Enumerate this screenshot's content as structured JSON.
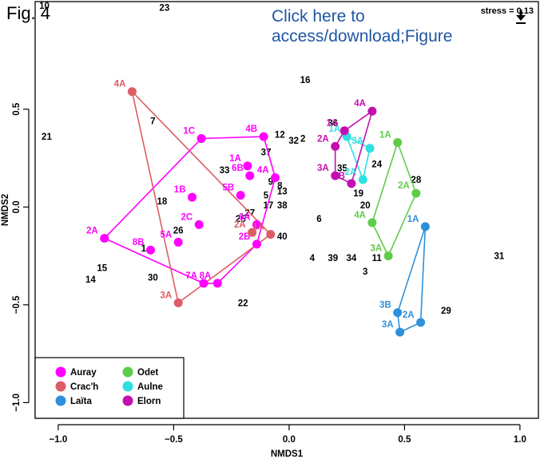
{
  "header": {
    "fig_label": "Fig. 4",
    "link_text_line1": "Click here to",
    "link_text_line2": "access/download;Figure",
    "download_icon": "download-icon"
  },
  "chart_data": {
    "type": "scatter",
    "stress_label": "stress = 0.13",
    "xlabel": "NMDS1",
    "ylabel": "NMDS2",
    "xlim": [
      -1.1,
      1.08
    ],
    "ylim": [
      -1.08,
      1.05
    ],
    "xticks": [
      -1.0,
      -0.5,
      0.0,
      0.5,
      1.0
    ],
    "xtick_labels": [
      "−1.0",
      "−0.5",
      "0.0",
      "0.5",
      "1.0"
    ],
    "yticks": [
      -1.0,
      -0.5,
      0.0,
      0.5
    ],
    "ytick_labels": [
      "−1.0",
      "−0.5",
      "0.0",
      "0.5"
    ],
    "grid": false,
    "legend_position": "bottom-left",
    "series": [
      {
        "name": "Auray",
        "color": "#ff00ff",
        "points": [
          {
            "label": "1A",
            "x": -0.18,
            "y": 0.21
          },
          {
            "label": "1B",
            "x": -0.42,
            "y": 0.05
          },
          {
            "label": "1C",
            "x": -0.38,
            "y": 0.35
          },
          {
            "label": "2A",
            "x": -0.8,
            "y": -0.16
          },
          {
            "label": "2B",
            "x": -0.14,
            "y": -0.19
          },
          {
            "label": "2C",
            "x": -0.39,
            "y": -0.09
          },
          {
            "label": "4A",
            "x": -0.06,
            "y": 0.15
          },
          {
            "label": "4B",
            "x": -0.11,
            "y": 0.36
          },
          {
            "label": "5A",
            "x": -0.48,
            "y": -0.18
          },
          {
            "label": "5B",
            "x": -0.21,
            "y": 0.06
          },
          {
            "label": "6A",
            "x": -0.14,
            "y": -0.09
          },
          {
            "label": "6B",
            "x": -0.17,
            "y": 0.16
          },
          {
            "label": "7A",
            "x": -0.37,
            "y": -0.39
          },
          {
            "label": "8A",
            "x": -0.31,
            "y": -0.39
          },
          {
            "label": "8B",
            "x": -0.6,
            "y": -0.22
          }
        ],
        "hull": [
          "1C",
          "4B",
          "4A",
          "2B",
          "8A",
          "7A",
          "2A"
        ]
      },
      {
        "name": "Crac'h",
        "color": "#dc5d66",
        "points": [
          {
            "label": "1A",
            "x": -0.08,
            "y": -0.14
          },
          {
            "label": "2A",
            "x": -0.16,
            "y": -0.13
          },
          {
            "label": "3A",
            "x": -0.48,
            "y": -0.49
          },
          {
            "label": "4A",
            "x": -0.68,
            "y": 0.59
          }
        ],
        "hull": [
          "4A",
          "1A",
          "3A"
        ]
      },
      {
        "name": "Laïta",
        "color": "#2e90dc",
        "points": [
          {
            "label": "1A",
            "x": 0.59,
            "y": -0.1
          },
          {
            "label": "2A",
            "x": 0.57,
            "y": -0.59
          },
          {
            "label": "3A",
            "x": 0.48,
            "y": -0.64
          },
          {
            "label": "3B",
            "x": 0.47,
            "y": -0.54
          }
        ],
        "hull": [
          "1A",
          "2A",
          "3A",
          "3B"
        ]
      },
      {
        "name": "Odet",
        "color": "#5fcc49",
        "points": [
          {
            "label": "1A",
            "x": 0.47,
            "y": 0.33
          },
          {
            "label": "2A",
            "x": 0.55,
            "y": 0.07
          },
          {
            "label": "3A",
            "x": 0.43,
            "y": -0.25
          },
          {
            "label": "4A",
            "x": 0.36,
            "y": -0.08
          }
        ],
        "hull": [
          "1A",
          "2A",
          "3A",
          "4A"
        ]
      },
      {
        "name": "Aulne",
        "color": "#2fdfe2",
        "points": [
          {
            "label": "1A",
            "x": 0.25,
            "y": 0.36
          },
          {
            "label": "2A",
            "x": 0.32,
            "y": 0.14
          },
          {
            "label": "3A",
            "x": 0.35,
            "y": 0.3
          }
        ],
        "hull": [
          "1A",
          "3A",
          "2A"
        ]
      },
      {
        "name": "Elorn",
        "color": "#c40fb0",
        "points": [
          {
            "label": "1A",
            "x": 0.24,
            "y": 0.39
          },
          {
            "label": "2A",
            "x": 0.2,
            "y": 0.31
          },
          {
            "label": "3A",
            "x": 0.2,
            "y": 0.16
          },
          {
            "label": "3B",
            "x": 0.27,
            "y": 0.12
          },
          {
            "label": "4A",
            "x": 0.36,
            "y": 0.49
          }
        ],
        "hull": [
          "1A",
          "4A",
          "3B",
          "3A",
          "2A"
        ]
      }
    ],
    "species_labels": [
      {
        "label": "1",
        "x": -0.63,
        "y": -0.21
      },
      {
        "label": "3",
        "x": 0.33,
        "y": -0.33
      },
      {
        "label": "4",
        "x": 0.1,
        "y": -0.26
      },
      {
        "label": "5",
        "x": -0.1,
        "y": 0.06
      },
      {
        "label": "6",
        "x": 0.13,
        "y": -0.06
      },
      {
        "label": "7",
        "x": -0.59,
        "y": 0.44
      },
      {
        "label": "8",
        "x": -0.04,
        "y": 0.11
      },
      {
        "label": "9",
        "x": -0.08,
        "y": 0.13
      },
      {
        "label": "10",
        "x": -1.06,
        "y": 1.03
      },
      {
        "label": "11",
        "x": 0.38,
        "y": -0.26
      },
      {
        "label": "12",
        "x": -0.04,
        "y": 0.37
      },
      {
        "label": "13",
        "x": -0.03,
        "y": 0.08
      },
      {
        "label": "14",
        "x": -0.86,
        "y": -0.37
      },
      {
        "label": "15",
        "x": -0.81,
        "y": -0.31
      },
      {
        "label": "16",
        "x": 0.07,
        "y": 0.65
      },
      {
        "label": "17",
        "x": -0.09,
        "y": 0.01
      },
      {
        "label": "18",
        "x": -0.55,
        "y": 0.03
      },
      {
        "label": "19",
        "x": 0.3,
        "y": 0.07
      },
      {
        "label": "20",
        "x": 0.33,
        "y": 0.01
      },
      {
        "label": "21",
        "x": -1.05,
        "y": 0.36
      },
      {
        "label": "22",
        "x": -0.2,
        "y": -0.49
      },
      {
        "label": "23",
        "x": -0.54,
        "y": 1.02
      },
      {
        "label": "24",
        "x": 0.38,
        "y": 0.22
      },
      {
        "label": "25",
        "x": -0.21,
        "y": -0.06
      },
      {
        "label": "26",
        "x": -0.48,
        "y": -0.12
      },
      {
        "label": "27",
        "x": -0.17,
        "y": -0.03
      },
      {
        "label": "28",
        "x": 0.55,
        "y": 0.14
      },
      {
        "label": "29",
        "x": 0.68,
        "y": -0.53
      },
      {
        "label": "30",
        "x": -0.59,
        "y": -0.36
      },
      {
        "label": "31",
        "x": 0.91,
        "y": -0.25
      },
      {
        "label": "32",
        "x": 0.02,
        "y": 0.34
      },
      {
        "label": "33",
        "x": -0.28,
        "y": 0.19
      },
      {
        "label": "34",
        "x": 0.27,
        "y": -0.26
      },
      {
        "label": "35",
        "x": 0.23,
        "y": 0.2
      },
      {
        "label": "36",
        "x": 0.19,
        "y": 0.43
      },
      {
        "label": "37",
        "x": -0.1,
        "y": 0.28
      },
      {
        "label": "38",
        "x": -0.03,
        "y": 0.01
      },
      {
        "label": "39",
        "x": 0.19,
        "y": -0.26
      },
      {
        "label": "40",
        "x": -0.03,
        "y": -0.15
      },
      {
        "label": "2",
        "x": 0.06,
        "y": 0.35
      }
    ]
  }
}
